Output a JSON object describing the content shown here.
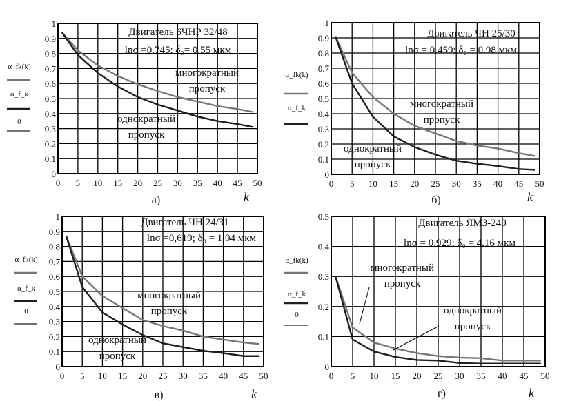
{
  "colors": {
    "single": "#1e1e1e",
    "multi": "#777777",
    "grid": "#000000"
  },
  "chart_data": [
    {
      "type": "line",
      "panel": "а)",
      "title": "Двигатель 6ЧНР 32/48",
      "subtitle": "lnσ =0.745;  δ₀= 0.55 мкм",
      "xlabel": "k",
      "ylabel": [
        "α_fk(k)",
        "α_f_k",
        "0"
      ],
      "xlim": [
        0,
        50
      ],
      "ylim": [
        0,
        1
      ],
      "xticks": [
        0,
        5,
        10,
        15,
        20,
        25,
        30,
        35,
        40,
        45,
        50
      ],
      "yticks": [
        0,
        0.1,
        0.2,
        0.3,
        0.4,
        0.5,
        0.6,
        0.7,
        0.8,
        0.9,
        1
      ],
      "grid": true,
      "x": [
        1,
        5,
        10,
        15,
        20,
        25,
        30,
        35,
        40,
        45,
        49
      ],
      "series": [
        {
          "name": "многократный пропуск",
          "label": [
            "многократный",
            "пропуск"
          ],
          "values": [
            0.94,
            0.82,
            0.72,
            0.65,
            0.595,
            0.55,
            0.51,
            0.48,
            0.45,
            0.43,
            0.41
          ]
        },
        {
          "name": "однократный пропуск",
          "label": [
            "однократный",
            "пропуск"
          ],
          "values": [
            0.94,
            0.79,
            0.67,
            0.58,
            0.51,
            0.46,
            0.42,
            0.38,
            0.35,
            0.33,
            0.31
          ]
        }
      ]
    },
    {
      "type": "line",
      "panel": "б)",
      "title": "Двигатель ЧН 25/30",
      "subtitle": "lnσ  = 0.459;  δ₀ = 0.98 мкм",
      "xlabel": "k",
      "ylabel": [
        "α_fk(k)",
        "α_f_k"
      ],
      "xlim": [
        0,
        50
      ],
      "ylim": [
        0,
        1
      ],
      "xticks": [
        0,
        5,
        10,
        15,
        20,
        25,
        30,
        35,
        40,
        45,
        50
      ],
      "yticks": [
        0,
        0.1,
        0.2,
        0.3,
        0.4,
        0.5,
        0.6,
        0.7,
        0.8,
        0.9,
        1
      ],
      "grid": true,
      "x": [
        1,
        5,
        10,
        15,
        20,
        25,
        30,
        35,
        40,
        45,
        49
      ],
      "series": [
        {
          "name": "многократный пропуск",
          "label": [
            "многократный",
            "пропуск"
          ],
          "values": [
            0.91,
            0.67,
            0.51,
            0.4,
            0.32,
            0.27,
            0.22,
            0.19,
            0.17,
            0.14,
            0.12
          ]
        },
        {
          "name": "однократный пропуск",
          "label": [
            "однократный",
            "пропуск"
          ],
          "values": [
            0.91,
            0.6,
            0.38,
            0.25,
            0.18,
            0.13,
            0.09,
            0.07,
            0.055,
            0.035,
            0.03
          ]
        }
      ]
    },
    {
      "type": "line",
      "panel": "в)",
      "title": "Двигатель ЧН 24/31",
      "subtitle": "lnσ  =0,619;  δ₀ = 1,04 мкм",
      "xlabel": "k",
      "ylabel": [
        "α_fk(k)",
        "α_f_k",
        "0"
      ],
      "xlim": [
        0,
        50
      ],
      "ylim": [
        0,
        1
      ],
      "xticks": [
        0,
        5,
        10,
        15,
        20,
        25,
        30,
        35,
        40,
        45,
        50
      ],
      "yticks": [
        0,
        0.1,
        0.2,
        0.3,
        0.4,
        0.5,
        0.6,
        0.7,
        0.8,
        0.9,
        1
      ],
      "grid": true,
      "x": [
        1,
        5,
        10,
        15,
        20,
        25,
        30,
        35,
        40,
        45,
        49
      ],
      "series": [
        {
          "name": "многократный пропуск",
          "label": [
            "многократный",
            "пропуск"
          ],
          "values": [
            0.87,
            0.6,
            0.47,
            0.39,
            0.31,
            0.27,
            0.24,
            0.2,
            0.18,
            0.16,
            0.15
          ]
        },
        {
          "name": "однократный пропуск",
          "label": [
            "однократный",
            "пропуск"
          ],
          "values": [
            0.87,
            0.53,
            0.36,
            0.28,
            0.21,
            0.155,
            0.13,
            0.105,
            0.09,
            0.07,
            0.07
          ]
        }
      ]
    },
    {
      "type": "line",
      "panel": "г)",
      "title": "Двигатель ЯМЗ-240",
      "subtitle": "lnσ  = 0,929;  δ₀ = 4,16 мкм",
      "xlabel": "k",
      "ylabel": [
        "α_fk(k)",
        "α_f_k",
        "0"
      ],
      "xlim": [
        0,
        50
      ],
      "ylim": [
        0,
        0.5
      ],
      "xticks": [
        0,
        5,
        10,
        15,
        20,
        25,
        30,
        35,
        40,
        45,
        50
      ],
      "yticks": [
        0,
        0.1,
        0.2,
        0.3,
        0.4,
        0.5
      ],
      "grid": true,
      "x": [
        1,
        5,
        10,
        15,
        20,
        25,
        30,
        35,
        40,
        45,
        49
      ],
      "series": [
        {
          "name": "многократный пропуск",
          "label": [
            "многократный",
            "пропуск"
          ],
          "values": [
            0.3,
            0.13,
            0.08,
            0.06,
            0.045,
            0.035,
            0.03,
            0.028,
            0.02,
            0.02,
            0.02
          ]
        },
        {
          "name": "однократный пропуск",
          "label": [
            "однократный",
            "пропуск"
          ],
          "values": [
            0.3,
            0.09,
            0.05,
            0.032,
            0.022,
            0.02,
            0.012,
            0.01,
            0.01,
            0.01,
            0.01
          ]
        }
      ]
    }
  ]
}
